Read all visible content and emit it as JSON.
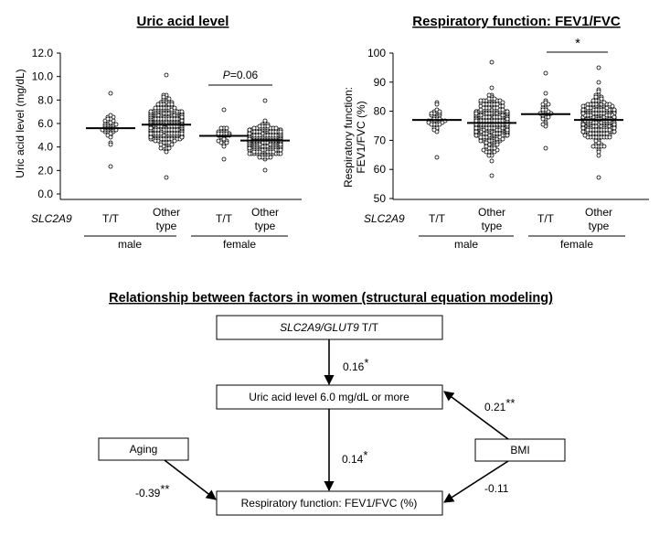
{
  "chart_data": [
    {
      "type": "scatter",
      "title": "Uric acid level",
      "ylabel": "Uric acid level  (mg/dL)",
      "ylim": [
        0,
        12
      ],
      "yticks": [
        "0.0",
        "2.0",
        "4.0",
        "6.0",
        "8.0",
        "10.0",
        "12.0"
      ],
      "row_label": "SLC2A9",
      "categories": [
        "T/T",
        "Other type",
        "T/T",
        "Other type"
      ],
      "groups": [
        "male",
        "female"
      ],
      "annotation": {
        "text": "=0.06",
        "prefix": "P",
        "between": [
          "female T/T",
          "female Other type"
        ]
      },
      "series": [
        {
          "category": "male T/T",
          "mean": 5.6,
          "min": 2.4,
          "max": 8.6,
          "n": 40
        },
        {
          "category": "male Other type",
          "mean": 5.9,
          "min": 1.4,
          "max": 10.1,
          "n": 420
        },
        {
          "category": "female T/T",
          "mean": 4.95,
          "min": 3.0,
          "max": 7.1,
          "n": 30
        },
        {
          "category": "female Other type",
          "mean": 4.55,
          "min": 2.1,
          "max": 8.0,
          "n": 300
        }
      ]
    },
    {
      "type": "scatter",
      "title": "Respiratory function: FEV1/FVC",
      "ylabel_lines": [
        "Respiratory  function:",
        "FEV1/FVC (%)"
      ],
      "ylim": [
        50,
        100
      ],
      "yticks": [
        "50",
        "60",
        "70",
        "80",
        "90",
        "100"
      ],
      "row_label": "SLC2A9",
      "categories": [
        "T/T",
        "Other type",
        "T/T",
        "Other type"
      ],
      "groups": [
        "male",
        "female"
      ],
      "annotation": {
        "text": "*",
        "between": [
          "female T/T",
          "female Other type"
        ]
      },
      "series": [
        {
          "category": "male T/T",
          "mean": 77.0,
          "min": 64,
          "max": 83,
          "n": 40
        },
        {
          "category": "male Other type",
          "mean": 76.0,
          "min": 58,
          "max": 97,
          "n": 420
        },
        {
          "category": "female T/T",
          "mean": 79.0,
          "min": 67,
          "max": 93,
          "n": 30
        },
        {
          "category": "female Other type",
          "mean": 77.0,
          "min": 57,
          "max": 95,
          "n": 300
        }
      ]
    }
  ],
  "sem": {
    "title": "Relationship between factors in women (structural equation modeling)",
    "boxes": {
      "gene": {
        "italic": "SLC2A9/GLUT9",
        "plain": " T/T"
      },
      "uric": "Uric acid level 6.0 mg/dL or more",
      "aging": "Aging",
      "bmi": "BMI",
      "resp": "Respiratory function: FEV1/FVC (%)"
    },
    "coefficients": {
      "gene_to_uric": {
        "value": "0.16",
        "stars": "*"
      },
      "bmi_to_uric": {
        "value": "0.21",
        "stars": "**"
      },
      "uric_to_resp": {
        "value": "0.14",
        "stars": "*"
      },
      "aging_to_resp": {
        "value": "-0.39",
        "stars": "**"
      },
      "bmi_to_resp": {
        "value": "-0.11",
        "stars": ""
      }
    }
  }
}
